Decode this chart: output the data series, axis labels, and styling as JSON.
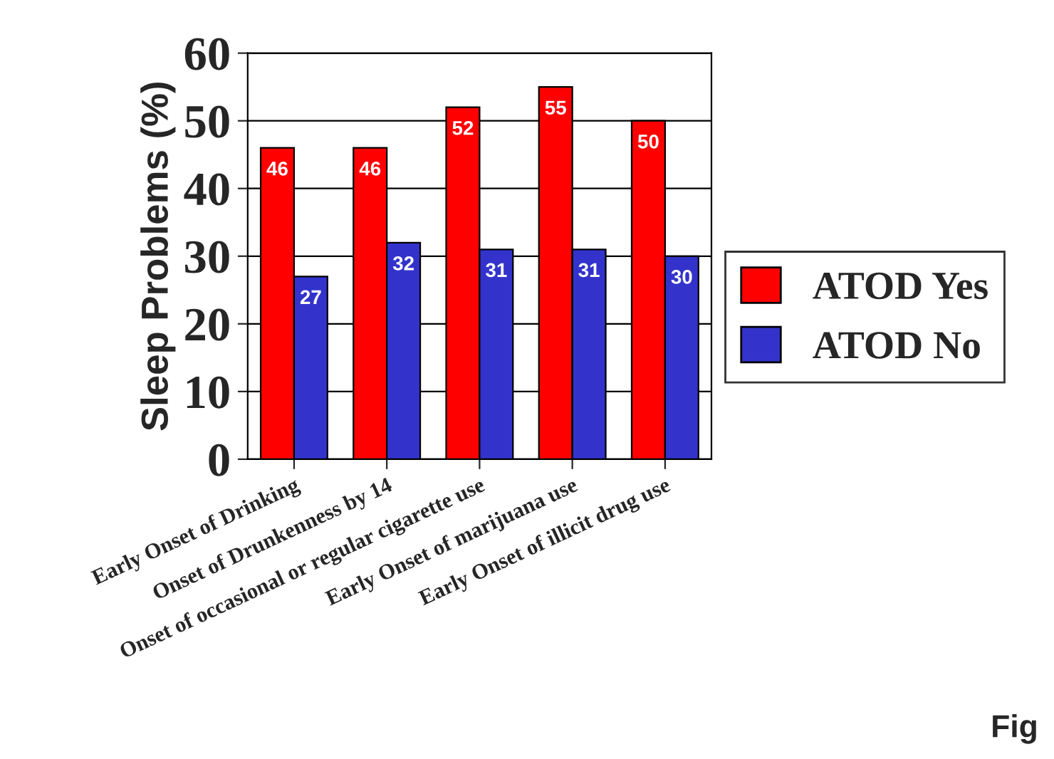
{
  "chart_data": {
    "type": "bar",
    "ylabel": "Sleep Problems (%)",
    "categories": [
      "Early Onset of Drinking",
      "Onset of Drunkenness by 14",
      "Onset of occasional or regular cigarette use",
      "Early Onset of marijuana use",
      "Early Onset of illicit drug use"
    ],
    "series": [
      {
        "name": "ATOD Yes",
        "color": "#ff0000",
        "values": [
          46,
          46,
          52,
          55,
          50
        ]
      },
      {
        "name": "ATOD No",
        "color": "#3333cc",
        "values": [
          27,
          32,
          31,
          31,
          30
        ]
      }
    ],
    "ylim": [
      0,
      60
    ],
    "yticks": [
      0,
      10,
      20,
      30,
      40,
      50,
      60
    ],
    "grid": "y",
    "legend": "right",
    "data_labels": true,
    "annotations": [
      "Fig"
    ]
  }
}
